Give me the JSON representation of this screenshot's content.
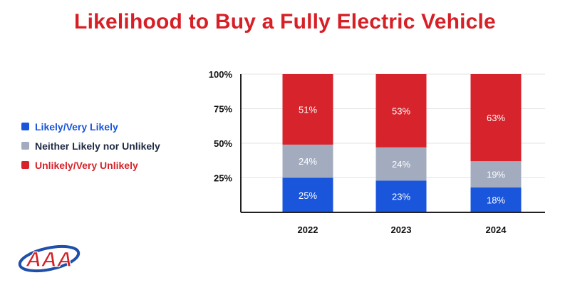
{
  "title": "Likelihood to Buy a Fully Electric Vehicle",
  "colors": {
    "likely": "#1a56db",
    "neither": "#a3acbf",
    "unlikely": "#d7232b",
    "legend_neither_text": "#1f2a44",
    "axis": "#222222",
    "grid": "#e3e3e3"
  },
  "logo": {
    "icon": "aaa-logo",
    "text": "AAA"
  },
  "chart_data": {
    "type": "bar",
    "stacked": true,
    "title": "Likelihood to Buy a Fully Electric Vehicle",
    "categories": [
      "2022",
      "2023",
      "2024"
    ],
    "series": [
      {
        "name": "Likely/Very Likely",
        "values": [
          25,
          23,
          18
        ],
        "labels": [
          "25%",
          "23%",
          "18%"
        ],
        "color": "#1a56db"
      },
      {
        "name": "Neither Likely nor Unlikely",
        "values": [
          24,
          24,
          19
        ],
        "labels": [
          "24%",
          "24%",
          "19%"
        ],
        "color": "#a3acbf"
      },
      {
        "name": "Unlikely/Very Unlikely",
        "values": [
          51,
          53,
          63
        ],
        "labels": [
          "51%",
          "53%",
          "63%"
        ],
        "color": "#d7232b"
      }
    ],
    "yticks": [
      25,
      50,
      75,
      100
    ],
    "ytick_labels": [
      "25%",
      "50%",
      "75%",
      "100%"
    ],
    "ylim": [
      0,
      100
    ],
    "grid": true,
    "legend": "left",
    "xlabel": "",
    "ylabel": ""
  }
}
